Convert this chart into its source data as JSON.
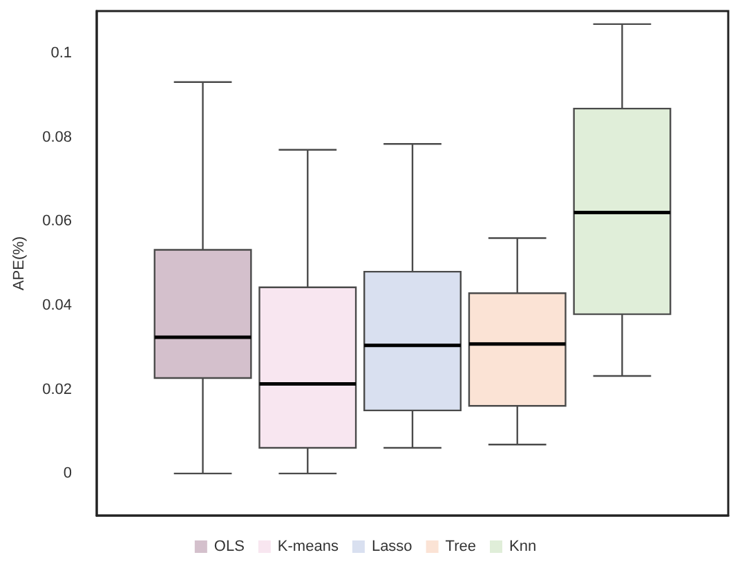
{
  "chart_data": {
    "type": "box",
    "ylabel": "APE(%)",
    "categories": [
      null
    ],
    "series": [
      {
        "name": "OLS",
        "color": "#d4c0cc",
        "boxes": [
          {
            "low": 0,
            "q1": 0.0227,
            "median": 0.0324,
            "q3": 0.0532,
            "high": 0.0931
          }
        ]
      },
      {
        "name": "K-means",
        "color": "#f8e6f0",
        "boxes": [
          {
            "low": 0,
            "q1": 0.0061,
            "median": 0.0213,
            "q3": 0.0443,
            "high": 0.077
          }
        ]
      },
      {
        "name": "Lasso",
        "color": "#d9e0f0",
        "boxes": [
          {
            "low": 0.0061,
            "q1": 0.015,
            "median": 0.0305,
            "q3": 0.048,
            "high": 0.0784
          }
        ]
      },
      {
        "name": "Tree",
        "color": "#fbe3d5",
        "boxes": [
          {
            "low": 0.0069,
            "q1": 0.0161,
            "median": 0.0308,
            "q3": 0.0429,
            "high": 0.056
          }
        ]
      },
      {
        "name": "Knn",
        "color": "#e0eed9",
        "boxes": [
          {
            "low": 0.0232,
            "q1": 0.0379,
            "median": 0.0621,
            "q3": 0.0868,
            "high": 0.1069
          }
        ]
      }
    ],
    "ylim": [
      -0.01,
      0.11
    ],
    "yticks": [
      0,
      0.02,
      0.04,
      0.06,
      0.08,
      0.1
    ],
    "grid": false,
    "legend": "bottom",
    "tick_labels": "y"
  }
}
